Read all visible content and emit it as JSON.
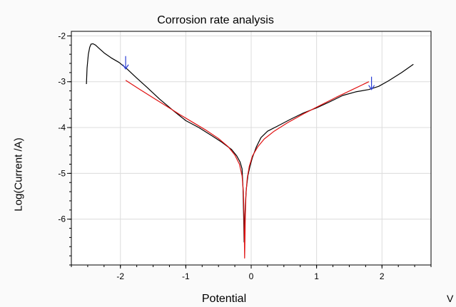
{
  "chart_data": {
    "type": "line",
    "title": "Corrosion rate analysis",
    "xlabel": "Potential",
    "x_unit": "V",
    "ylabel": "Log(Current /A)",
    "xlim": [
      -2.75,
      2.75
    ],
    "ylim": [
      -7.0,
      -1.9
    ],
    "x_ticks": [
      -2,
      -1,
      0,
      1,
      2
    ],
    "y_ticks": [
      -2,
      -3,
      -4,
      -5,
      -6
    ],
    "grid": true,
    "series": [
      {
        "color": "#000000",
        "x": [
          -2.52,
          -2.51,
          -2.49,
          -2.47,
          -2.45,
          -2.42,
          -2.38,
          -2.32,
          -2.24,
          -2.14,
          -2.02,
          -1.9,
          -1.75,
          -1.58,
          -1.4,
          -1.2,
          -1.0,
          -0.8,
          -0.6,
          -0.45,
          -0.3,
          -0.22,
          -0.17,
          -0.14,
          -0.125,
          -0.115,
          -0.108,
          -0.1,
          -0.09,
          -0.075,
          -0.05,
          -0.02,
          0.02,
          0.08,
          0.15,
          0.25,
          0.4,
          0.6,
          0.8,
          1.0,
          1.2,
          1.4,
          1.6,
          1.8,
          1.95,
          2.1,
          2.3,
          2.48
        ],
        "y": [
          -3.05,
          -2.7,
          -2.4,
          -2.25,
          -2.18,
          -2.17,
          -2.2,
          -2.28,
          -2.38,
          -2.48,
          -2.58,
          -2.72,
          -2.92,
          -3.14,
          -3.38,
          -3.62,
          -3.85,
          -4.0,
          -4.18,
          -4.32,
          -4.48,
          -4.62,
          -4.75,
          -4.9,
          -5.3,
          -6.0,
          -6.5,
          -6.15,
          -5.7,
          -5.35,
          -5.05,
          -4.85,
          -4.65,
          -4.42,
          -4.22,
          -4.08,
          -3.97,
          -3.82,
          -3.68,
          -3.57,
          -3.44,
          -3.3,
          -3.22,
          -3.17,
          -3.1,
          -2.98,
          -2.8,
          -2.62
        ]
      },
      {
        "color": "#e01010",
        "x": [
          -1.92,
          -1.7,
          -1.5,
          -1.3,
          -1.1,
          -0.9,
          -0.7,
          -0.5,
          -0.35,
          -0.25,
          -0.18,
          -0.14,
          -0.12,
          -0.11,
          -0.105,
          -0.1,
          -0.095,
          -0.09,
          -0.08,
          -0.06,
          -0.03,
          0.02,
          0.1,
          0.2,
          0.35,
          0.55,
          0.8,
          1.05,
          1.3,
          1.55,
          1.8
        ],
        "y": [
          -2.97,
          -3.17,
          -3.35,
          -3.53,
          -3.71,
          -3.88,
          -4.05,
          -4.24,
          -4.42,
          -4.6,
          -4.8,
          -5.05,
          -5.4,
          -5.9,
          -6.4,
          -6.85,
          -6.4,
          -5.9,
          -5.45,
          -5.1,
          -4.85,
          -4.62,
          -4.42,
          -4.25,
          -4.08,
          -3.9,
          -3.7,
          -3.52,
          -3.34,
          -3.17,
          -3.0
        ]
      }
    ],
    "markers": [
      {
        "type": "arrow-down",
        "color": "#2a3fd6",
        "x": -1.92,
        "y": -2.72
      },
      {
        "type": "arrow-down",
        "color": "#2a3fd6",
        "x": 1.84,
        "y": -3.17
      }
    ]
  }
}
